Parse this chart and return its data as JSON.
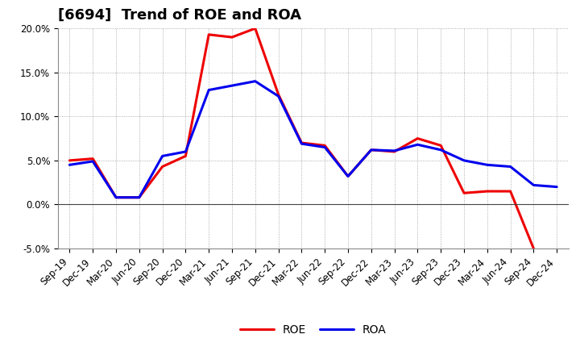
{
  "title": "[6694]  Trend of ROE and ROA",
  "labels": [
    "Sep-19",
    "Dec-19",
    "Mar-20",
    "Jun-20",
    "Sep-20",
    "Dec-20",
    "Mar-21",
    "Jun-21",
    "Sep-21",
    "Dec-21",
    "Mar-22",
    "Jun-22",
    "Sep-22",
    "Dec-22",
    "Mar-23",
    "Jun-23",
    "Sep-23",
    "Dec-23",
    "Mar-24",
    "Jun-24",
    "Sep-24",
    "Dec-24"
  ],
  "ROE": [
    5.0,
    5.2,
    0.8,
    0.8,
    4.3,
    5.5,
    19.3,
    19.0,
    20.0,
    12.5,
    7.0,
    6.7,
    3.2,
    6.2,
    6.0,
    7.5,
    6.7,
    1.3,
    1.5,
    1.5,
    -5.0,
    null
  ],
  "ROA": [
    4.5,
    4.9,
    0.8,
    0.8,
    5.5,
    6.0,
    13.0,
    13.5,
    14.0,
    12.3,
    6.9,
    6.5,
    3.2,
    6.2,
    6.1,
    6.8,
    6.2,
    5.0,
    4.5,
    4.3,
    2.2,
    2.0
  ],
  "roe_color": "#EE0000",
  "roa_color": "#0000EE",
  "background_color": "#FFFFFF",
  "grid_color": "#999999",
  "ylim": [
    -5.0,
    20.0
  ],
  "yticks": [
    -5.0,
    0.0,
    5.0,
    10.0,
    15.0,
    20.0
  ],
  "line_width": 2.2,
  "title_fontsize": 13,
  "tick_fontsize": 8.5
}
